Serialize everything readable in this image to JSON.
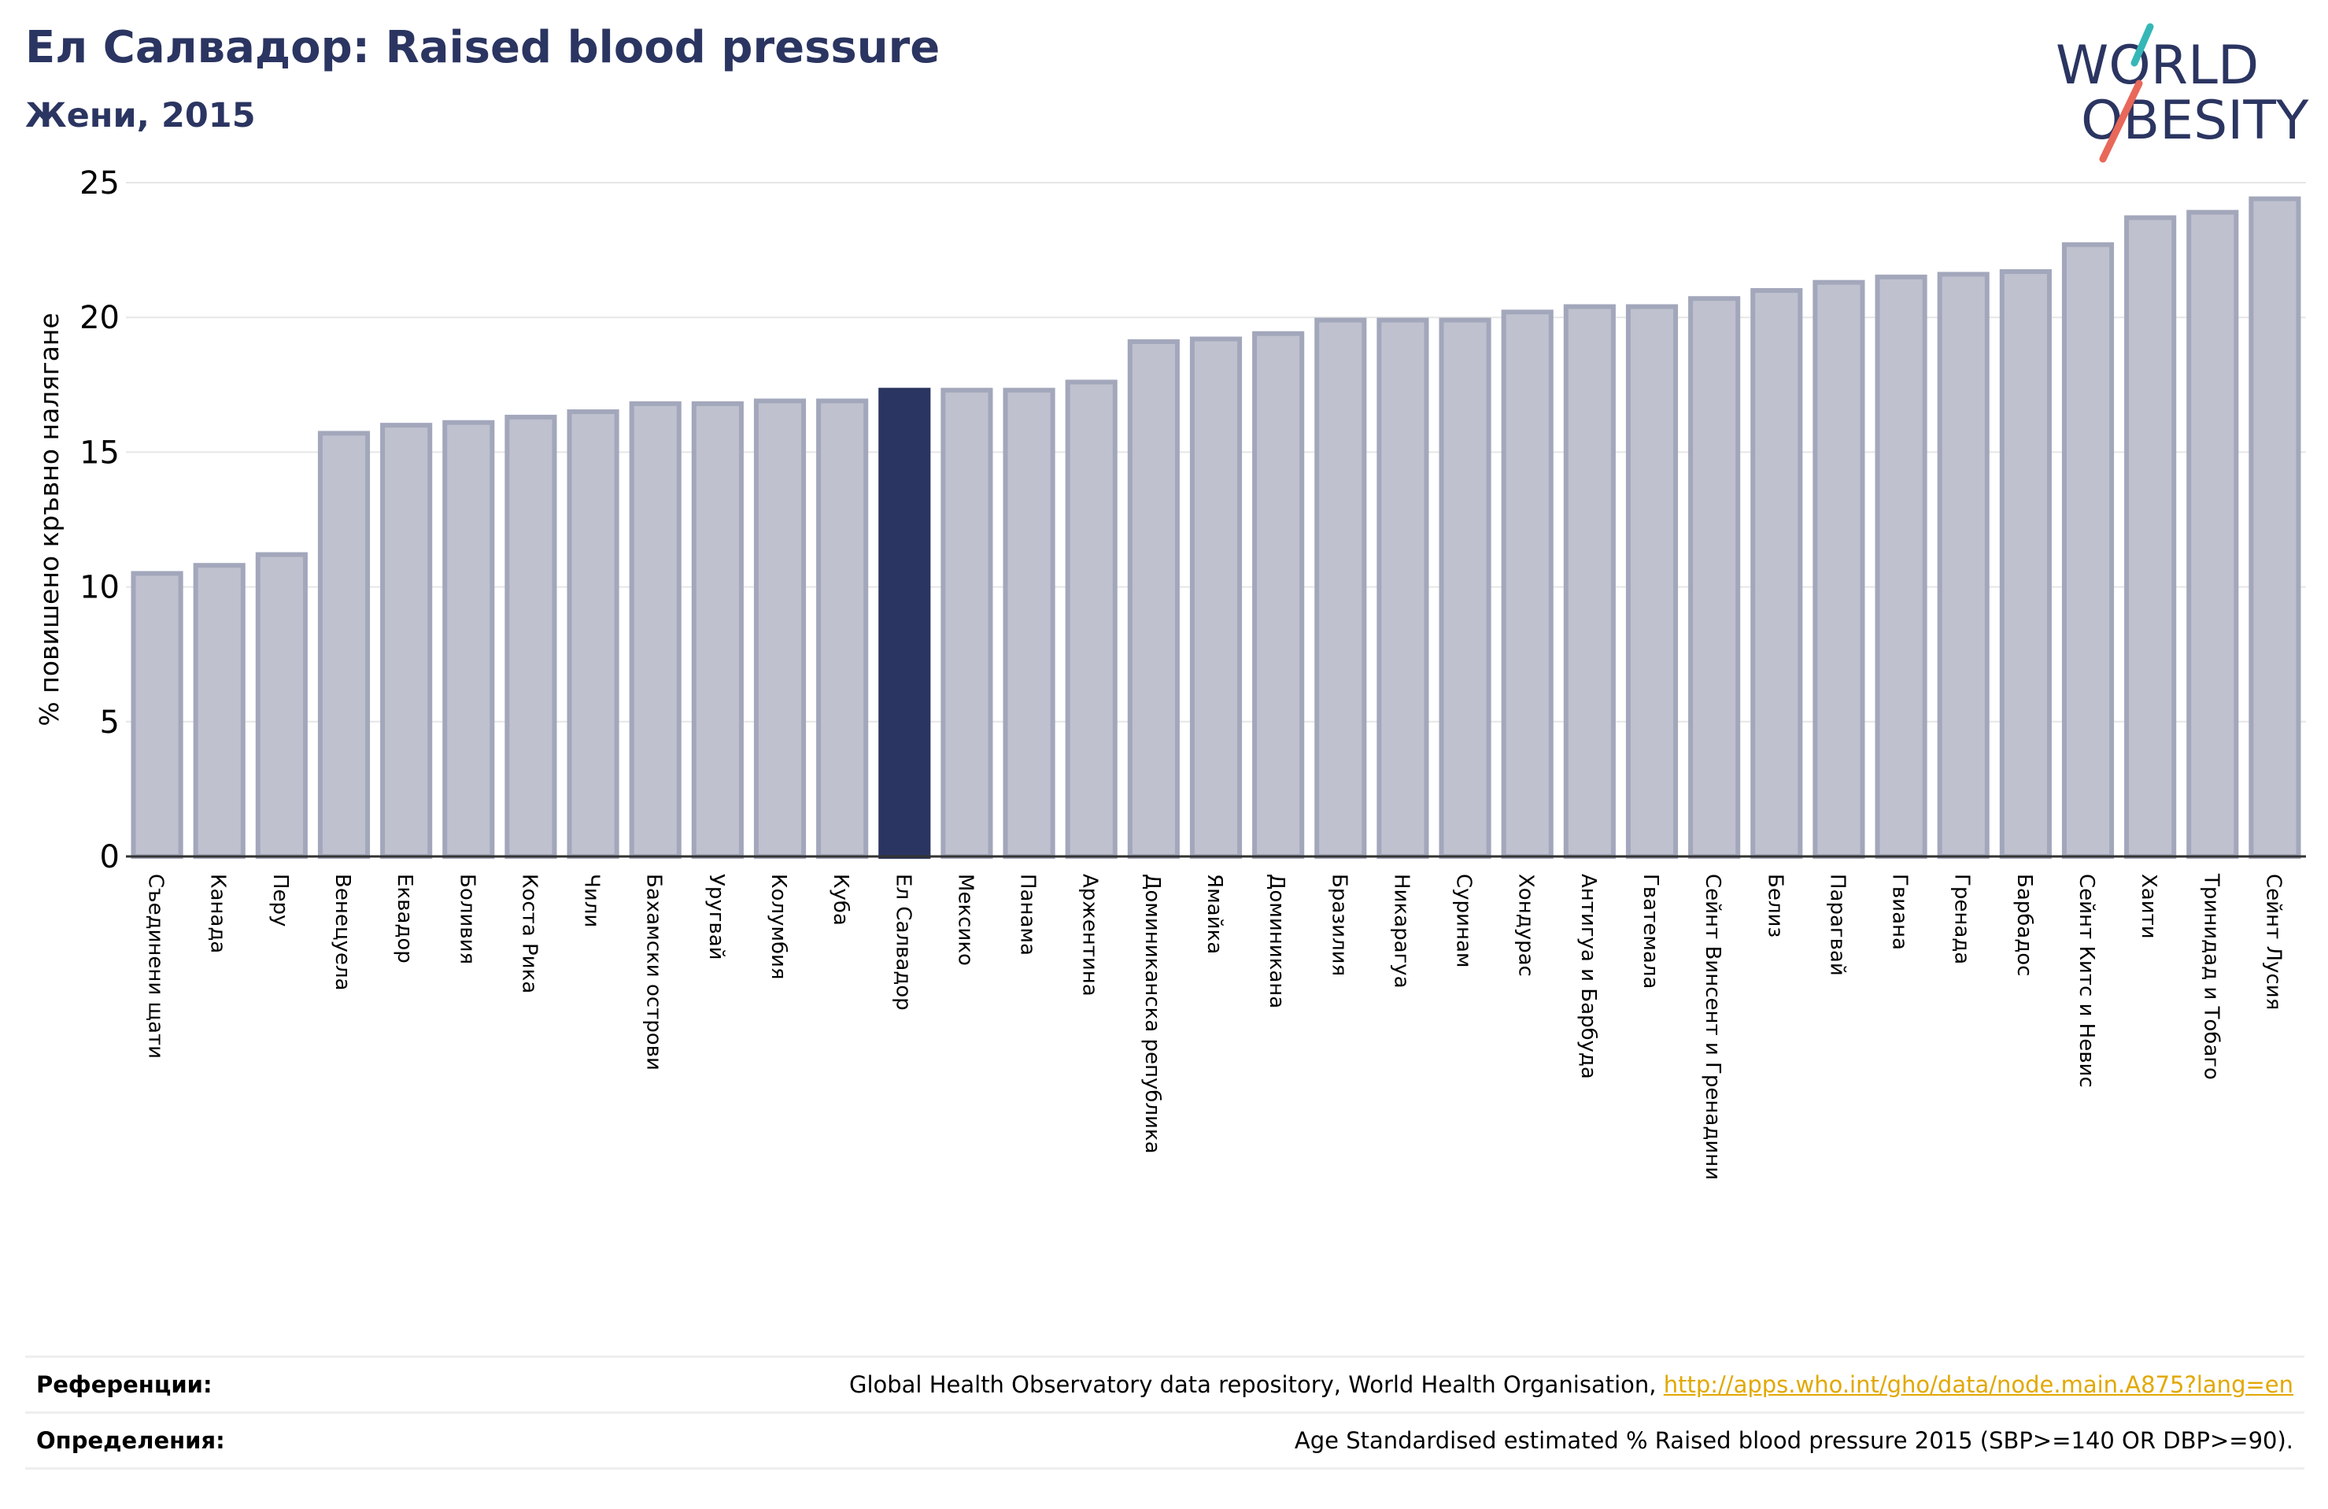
{
  "header": {
    "title": "Ел Салвадор: Raised blood pressure",
    "subtitle": "Жени, 2015"
  },
  "logo": {
    "line1": "WORLD",
    "line2": "OBESITY",
    "icon": "world-obesity-logo"
  },
  "colors": {
    "highlight": "#2b3561",
    "bar_fill": "#bfc1ce",
    "bar_stroke": "#a3a7bb",
    "title": "#2b3561",
    "link": "#e2a800"
  },
  "chart_data": {
    "type": "bar",
    "ylabel": "% повишено кръвно налягане",
    "xlabel": "",
    "ylim": [
      0,
      25
    ],
    "yticks": [
      0,
      5,
      10,
      15,
      20,
      25
    ],
    "grid": true,
    "highlight_category": "Ел Салвадор",
    "categories": [
      "Съединени щати",
      "Канада",
      "Перу",
      "Венецуела",
      "Еквадор",
      "Боливия",
      "Коста Рика",
      "Чили",
      "Бахамски острови",
      "Уругвай",
      "Колумбия",
      "Куба",
      "Ел Салвадор",
      "Мексико",
      "Панама",
      "Аржентина",
      "Доминиканска република",
      "Ямайка",
      "Доминикана",
      "Бразилия",
      "Никарагуа",
      "Суринам",
      "Хондурас",
      "Антигуа и Барбуда",
      "Гватемала",
      "Сейнт Винсент и Гренадини",
      "Белиз",
      "Парагвай",
      "Гвиана",
      "Гренада",
      "Барбадос",
      "Сейнт Китс и Невис",
      "Хаити",
      "Тринидад и Тобаго",
      "Сейнт Лусия"
    ],
    "values": [
      10.5,
      10.8,
      11.2,
      15.7,
      16.0,
      16.1,
      16.3,
      16.5,
      16.8,
      16.8,
      16.9,
      16.9,
      17.3,
      17.3,
      17.3,
      17.6,
      19.1,
      19.2,
      19.4,
      19.9,
      19.9,
      19.9,
      20.2,
      20.4,
      20.4,
      20.7,
      21.0,
      21.3,
      21.5,
      21.6,
      21.7,
      22.7,
      23.7,
      23.9,
      24.4
    ]
  },
  "references": {
    "label": "Референции:",
    "text": "Global Health Observatory data repository, World Health Organisation, ",
    "link": "http://apps.who.int/gho/data/node.main.A875?lang=en"
  },
  "definitions": {
    "label": "Определения:",
    "text": "Age Standardised estimated % Raised blood pressure 2015 (SBP>=140 OR DBP>=90)."
  }
}
